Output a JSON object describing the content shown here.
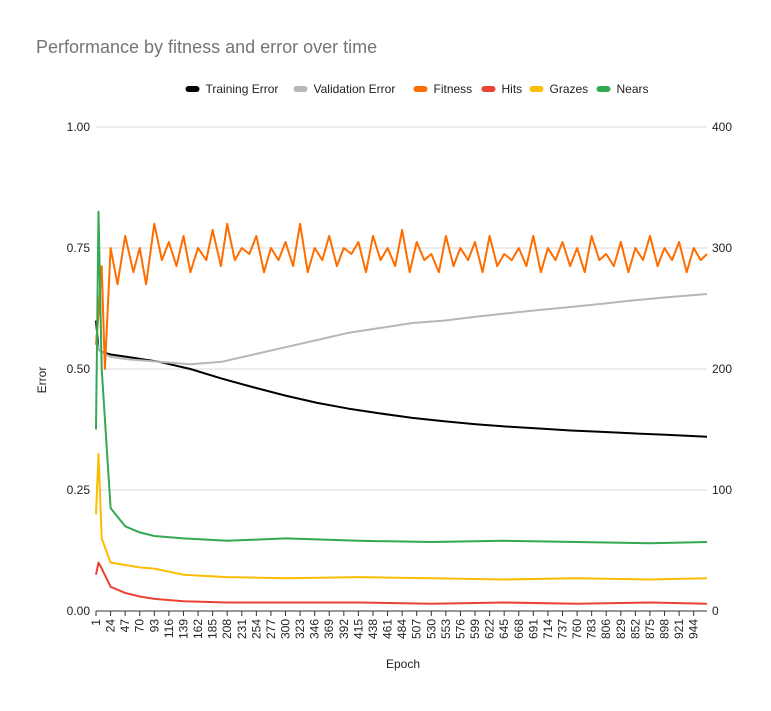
{
  "chart_data": {
    "type": "line",
    "title": "Performance by fitness and error over time",
    "xlabel": "Epoch",
    "ylabel": "Error",
    "ylabel_right": "",
    "x_range": [
      1,
      965
    ],
    "ylim_left": [
      0,
      1
    ],
    "ylim_right": [
      0,
      400
    ],
    "left_ticks": [
      "0.00",
      "0.25",
      "0.50",
      "0.75",
      "1.00"
    ],
    "left_tick_values": [
      0,
      0.25,
      0.5,
      0.75,
      1.0
    ],
    "right_ticks": [
      "0",
      "100",
      "200",
      "300",
      "400"
    ],
    "right_tick_values": [
      0,
      100,
      200,
      300,
      400
    ],
    "x_ticks": [
      1,
      24,
      47,
      70,
      93,
      116,
      139,
      162,
      185,
      208,
      231,
      254,
      277,
      300,
      323,
      346,
      369,
      392,
      415,
      438,
      461,
      484,
      507,
      530,
      553,
      576,
      599,
      622,
      645,
      668,
      691,
      714,
      737,
      760,
      783,
      806,
      829,
      852,
      875,
      898,
      921,
      944
    ],
    "grid": "horizontal",
    "legend_position": "top",
    "series": [
      {
        "name": "Training Error",
        "axis": "left",
        "color": "#000000",
        "x": [
          1,
          5,
          10,
          24,
          50,
          100,
          150,
          200,
          250,
          300,
          350,
          400,
          450,
          500,
          550,
          600,
          650,
          700,
          750,
          800,
          850,
          900,
          965
        ],
        "values": [
          0.6,
          0.54,
          0.535,
          0.53,
          0.525,
          0.515,
          0.5,
          0.48,
          0.462,
          0.445,
          0.43,
          0.418,
          0.408,
          0.399,
          0.392,
          0.386,
          0.381,
          0.377,
          0.373,
          0.37,
          0.367,
          0.364,
          0.36
        ]
      },
      {
        "name": "Validation Error",
        "axis": "left",
        "color": "#b7b7b7",
        "x": [
          1,
          5,
          10,
          24,
          50,
          100,
          150,
          200,
          250,
          300,
          350,
          400,
          450,
          500,
          550,
          600,
          650,
          700,
          750,
          800,
          850,
          900,
          965
        ],
        "values": [
          0.57,
          0.54,
          0.535,
          0.525,
          0.52,
          0.515,
          0.51,
          0.515,
          0.53,
          0.545,
          0.56,
          0.575,
          0.585,
          0.595,
          0.6,
          0.608,
          0.615,
          0.622,
          0.628,
          0.635,
          0.642,
          0.648,
          0.655
        ]
      },
      {
        "name": "Fitness",
        "axis": "right",
        "color": "#ff6d01",
        "x": [
          1,
          5,
          10,
          15,
          24,
          35,
          47,
          60,
          70,
          80,
          93,
          105,
          116,
          128,
          139,
          150,
          162,
          175,
          185,
          198,
          208,
          220,
          231,
          243,
          254,
          266,
          277,
          289,
          300,
          312,
          323,
          335,
          346,
          358,
          369,
          381,
          392,
          404,
          415,
          427,
          438,
          450,
          461,
          473,
          484,
          496,
          507,
          519,
          530,
          542,
          553,
          565,
          576,
          588,
          599,
          611,
          622,
          634,
          645,
          657,
          668,
          680,
          691,
          703,
          714,
          726,
          737,
          749,
          760,
          772,
          783,
          795,
          806,
          818,
          829,
          841,
          852,
          864,
          875,
          887,
          898,
          910,
          921,
          933,
          944,
          955,
          965
        ],
        "values": [
          220,
          245,
          285,
          200,
          300,
          270,
          310,
          280,
          300,
          270,
          320,
          290,
          305,
          285,
          310,
          280,
          300,
          290,
          315,
          285,
          320,
          290,
          300,
          295,
          310,
          280,
          300,
          290,
          305,
          285,
          320,
          280,
          300,
          290,
          310,
          285,
          300,
          295,
          305,
          280,
          310,
          290,
          300,
          285,
          315,
          280,
          305,
          290,
          295,
          280,
          310,
          285,
          300,
          290,
          305,
          280,
          310,
          285,
          295,
          290,
          300,
          285,
          310,
          280,
          300,
          290,
          305,
          285,
          300,
          280,
          310,
          290,
          295,
          285,
          305,
          280,
          300,
          290,
          310,
          285,
          300,
          290,
          305,
          280,
          300,
          290,
          295
        ]
      },
      {
        "name": "Hits",
        "axis": "right",
        "color": "#ea4335",
        "x": [
          1,
          5,
          10,
          24,
          47,
          70,
          93,
          139,
          208,
          300,
          415,
          530,
          645,
          760,
          875,
          965
        ],
        "values": [
          30,
          40,
          35,
          20,
          15,
          12,
          10,
          8,
          7,
          7,
          7,
          6,
          7,
          6,
          7,
          6
        ]
      },
      {
        "name": "Grazes",
        "axis": "right",
        "color": "#fbbc04",
        "x": [
          1,
          5,
          10,
          24,
          47,
          70,
          93,
          139,
          208,
          300,
          415,
          530,
          645,
          760,
          875,
          965
        ],
        "values": [
          80,
          130,
          60,
          40,
          38,
          36,
          35,
          30,
          28,
          27,
          28,
          27,
          26,
          27,
          26,
          27
        ]
      },
      {
        "name": "Nears",
        "axis": "right",
        "color": "#34a853",
        "x": [
          1,
          5,
          10,
          24,
          47,
          70,
          93,
          139,
          208,
          300,
          415,
          530,
          645,
          760,
          875,
          965
        ],
        "values": [
          150,
          330,
          200,
          85,
          70,
          65,
          62,
          60,
          58,
          60,
          58,
          57,
          58,
          57,
          56,
          57
        ]
      }
    ]
  }
}
